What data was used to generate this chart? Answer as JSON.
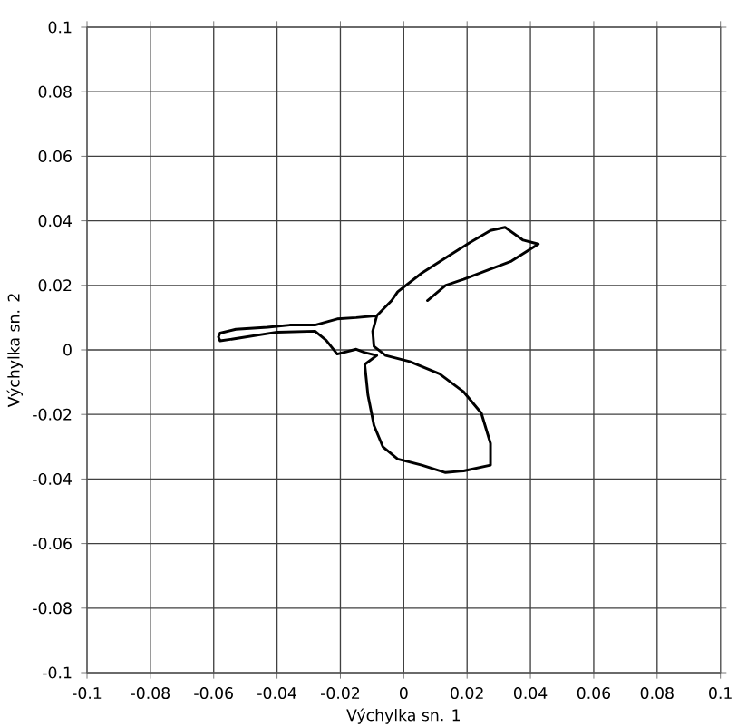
{
  "chart_data": {
    "type": "line",
    "xlabel": "Výchylka sn. 1",
    "ylabel": "Výchylka sn. 2",
    "xlim": [
      -0.1,
      0.1
    ],
    "ylim": [
      -0.1,
      0.1
    ],
    "xticks": [
      -0.1,
      -0.08,
      -0.06,
      -0.04,
      -0.02,
      0,
      0.02,
      0.04,
      0.06,
      0.08,
      0.1
    ],
    "yticks": [
      -0.1,
      -0.08,
      -0.06,
      -0.04,
      -0.02,
      0,
      0.02,
      0.04,
      0.06,
      0.08,
      0.1
    ],
    "grid": true,
    "marker": "none",
    "line_style": "solid",
    "series": [
      {
        "color": "#000000",
        "x": [
          0.0075,
          0.0132,
          0.0189,
          0.0264,
          0.034,
          0.0425,
          0.0377,
          0.032,
          0.0274,
          0.0208,
          0.0132,
          0.0057,
          -0.0019,
          -0.0038,
          -0.0085,
          -0.015,
          -0.021,
          -0.028,
          -0.036,
          -0.043,
          -0.053,
          -0.058,
          -0.0585,
          -0.058,
          -0.053,
          -0.04,
          -0.028,
          -0.0245,
          -0.021,
          -0.015,
          -0.0123,
          -0.0085,
          -0.0123,
          -0.0113,
          -0.0094,
          -0.0066,
          -0.0019,
          0.0057,
          0.0132,
          0.0189,
          0.0274,
          0.0274,
          0.0245,
          0.0189,
          0.0113,
          0.0019,
          -0.0057,
          -0.0094,
          -0.0098,
          -0.0085
        ],
        "values": [
          0.0153,
          0.02,
          0.0219,
          0.0247,
          0.0275,
          0.0328,
          0.034,
          0.038,
          0.037,
          0.0332,
          0.0285,
          0.0238,
          0.018,
          0.0153,
          0.0106,
          0.01,
          0.0096,
          0.0077,
          0.0077,
          0.007,
          0.0064,
          0.0052,
          0.004,
          0.0028,
          0.0035,
          0.0055,
          0.0058,
          0.003,
          -0.0013,
          0.0002,
          -0.0008,
          -0.0017,
          -0.0045,
          -0.014,
          -0.0234,
          -0.03,
          -0.0338,
          -0.0357,
          -0.038,
          -0.0375,
          -0.0357,
          -0.029,
          -0.0196,
          -0.013,
          -0.0074,
          -0.0036,
          -0.0017,
          0.0011,
          0.0058,
          0.0106
        ]
      }
    ]
  }
}
